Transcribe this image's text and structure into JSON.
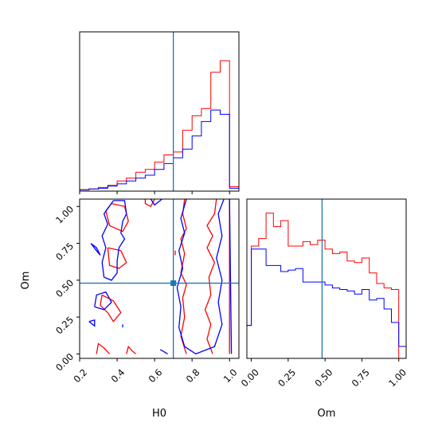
{
  "chart_data": {
    "type": "corner",
    "parameters": [
      "H0",
      "Om"
    ],
    "truth": {
      "H0": 0.7,
      "Om": 0.48,
      "color": "#1f77b4"
    },
    "colors": {
      "run_a": "#ff0000",
      "run_b": "#0000ff"
    },
    "axes": {
      "H0": {
        "range": [
          0.2,
          1.05
        ],
        "ticks": [
          0.2,
          0.4,
          0.6,
          0.8,
          1.0
        ],
        "tick_labels": [
          "0.2",
          "0.4",
          "0.6",
          "0.8",
          "1.0"
        ],
        "xlabel": "H0"
      },
      "Om": {
        "range": [
          -0.03,
          1.05
        ],
        "ticks": [
          0.0,
          0.25,
          0.5,
          0.75,
          1.0
        ],
        "tick_labels": [
          "0.00",
          "0.25",
          "0.50",
          "0.75",
          "1.00"
        ],
        "xlabel": "Om",
        "ylabel": "Om"
      }
    },
    "hist_H0": {
      "bin_edges": [
        0.2,
        0.25,
        0.3,
        0.35,
        0.4,
        0.45,
        0.5,
        0.55,
        0.6,
        0.65,
        0.7,
        0.75,
        0.8,
        0.85,
        0.9,
        0.95,
        1.0,
        1.05
      ],
      "run_a": [
        0.01,
        0.015,
        0.025,
        0.04,
        0.07,
        0.09,
        0.13,
        0.15,
        0.2,
        0.25,
        0.27,
        0.42,
        0.52,
        0.57,
        0.82,
        0.9,
        0.03
      ],
      "run_b": [
        0.01,
        0.015,
        0.02,
        0.035,
        0.05,
        0.07,
        0.09,
        0.11,
        0.15,
        0.19,
        0.23,
        0.29,
        0.38,
        0.48,
        0.56,
        0.53,
        0.02
      ],
      "ymax": 1.0
    },
    "hist_Om": {
      "bin_edges": [
        -0.03,
        0.0,
        0.05,
        0.1,
        0.15,
        0.2,
        0.25,
        0.3,
        0.35,
        0.4,
        0.45,
        0.5,
        0.55,
        0.6,
        0.65,
        0.7,
        0.75,
        0.8,
        0.85,
        0.9,
        0.95,
        1.0,
        1.05
      ],
      "run_a": [
        0.22,
        0.75,
        0.8,
        0.97,
        0.88,
        0.92,
        0.75,
        0.75,
        0.78,
        0.76,
        0.79,
        0.73,
        0.7,
        0.71,
        0.65,
        0.64,
        0.67,
        0.57,
        0.5,
        0.47,
        0.46,
        0.0
      ],
      "run_b": [
        0.22,
        0.73,
        0.73,
        0.62,
        0.62,
        0.58,
        0.59,
        0.6,
        0.51,
        0.51,
        0.51,
        0.49,
        0.47,
        0.46,
        0.45,
        0.43,
        0.46,
        0.39,
        0.4,
        0.33,
        0.24,
        0.08
      ],
      "ymax": 1.0
    },
    "contours_2d": {
      "run_a": [
        [
          [
            0.37,
            1.02
          ],
          [
            0.44,
            1.0
          ],
          [
            0.46,
            0.9
          ],
          [
            0.43,
            0.83
          ],
          [
            0.36,
            0.87
          ],
          [
            0.34,
            0.97
          ],
          [
            0.37,
            1.02
          ]
        ],
        [
          [
            0.35,
            0.72
          ],
          [
            0.42,
            0.7
          ],
          [
            0.45,
            0.62
          ],
          [
            0.41,
            0.58
          ],
          [
            0.36,
            0.6
          ],
          [
            0.35,
            0.72
          ]
        ],
        [
          [
            0.32,
            0.4
          ],
          [
            0.38,
            0.36
          ],
          [
            0.42,
            0.28
          ],
          [
            0.38,
            0.22
          ],
          [
            0.35,
            0.28
          ],
          [
            0.31,
            0.33
          ],
          [
            0.32,
            0.4
          ]
        ],
        [
          [
            0.29,
            0.0
          ],
          [
            0.3,
            0.07
          ],
          [
            0.33,
            0.04
          ],
          [
            0.36,
            0.0
          ]
        ],
        [
          [
            0.45,
            0.0
          ],
          [
            0.46,
            0.05
          ],
          [
            0.48,
            0.02
          ],
          [
            0.5,
            0.0
          ]
        ],
        [
          [
            0.55,
            1.05
          ],
          [
            0.55,
            1.02
          ],
          [
            0.58,
            1.0
          ],
          [
            0.6,
            1.05
          ]
        ],
        [
          [
            0.76,
            1.05
          ],
          [
            0.75,
            0.95
          ],
          [
            0.77,
            0.85
          ],
          [
            0.74,
            0.78
          ],
          [
            0.76,
            0.68
          ],
          [
            0.74,
            0.55
          ],
          [
            0.77,
            0.47
          ],
          [
            0.75,
            0.38
          ],
          [
            0.76,
            0.25
          ],
          [
            0.74,
            0.12
          ],
          [
            0.77,
            0.0
          ]
        ],
        [
          [
            0.93,
            1.05
          ],
          [
            0.92,
            0.95
          ],
          [
            0.88,
            0.87
          ],
          [
            0.91,
            0.8
          ],
          [
            0.88,
            0.72
          ],
          [
            0.92,
            0.62
          ],
          [
            0.89,
            0.52
          ],
          [
            0.9,
            0.4
          ],
          [
            0.87,
            0.3
          ],
          [
            0.9,
            0.2
          ],
          [
            0.88,
            0.1
          ],
          [
            0.91,
            0.0
          ]
        ],
        [
          [
            0.71,
            0.7
          ],
          [
            0.71,
            0.67
          ]
        ],
        [
          [
            1.0,
            1.05
          ],
          [
            1.0,
            0.0
          ]
        ]
      ],
      "run_b": [
        [
          [
            0.38,
            1.04
          ],
          [
            0.44,
            1.04
          ],
          [
            0.45,
            0.95
          ],
          [
            0.43,
            0.9
          ],
          [
            0.42,
            0.82
          ],
          [
            0.44,
            0.78
          ],
          [
            0.41,
            0.72
          ],
          [
            0.4,
            0.63
          ],
          [
            0.4,
            0.55
          ],
          [
            0.37,
            0.5
          ],
          [
            0.33,
            0.52
          ],
          [
            0.32,
            0.62
          ],
          [
            0.34,
            0.72
          ],
          [
            0.32,
            0.8
          ],
          [
            0.35,
            0.88
          ],
          [
            0.33,
            0.95
          ],
          [
            0.38,
            1.04
          ]
        ],
        [
          [
            0.26,
            0.75
          ],
          [
            0.29,
            0.72
          ],
          [
            0.31,
            0.67
          ],
          [
            0.29,
            0.7
          ],
          [
            0.26,
            0.75
          ]
        ],
        [
          [
            0.28,
            0.32
          ],
          [
            0.33,
            0.3
          ],
          [
            0.37,
            0.35
          ],
          [
            0.34,
            0.42
          ],
          [
            0.29,
            0.4
          ],
          [
            0.28,
            0.32
          ]
        ],
        [
          [
            0.25,
            0.22
          ],
          [
            0.28,
            0.19
          ],
          [
            0.28,
            0.23
          ],
          [
            0.25,
            0.22
          ]
        ],
        [
          [
            0.43,
            0.2
          ],
          [
            0.43,
            0.18
          ]
        ],
        [
          [
            0.58,
            1.05
          ],
          [
            0.6,
            1.01
          ],
          [
            0.64,
            1.05
          ]
        ],
        [
          [
            0.77,
            1.05
          ],
          [
            0.74,
            0.92
          ],
          [
            0.76,
            0.82
          ],
          [
            0.73,
            0.7
          ],
          [
            0.75,
            0.58
          ],
          [
            0.72,
            0.45
          ],
          [
            0.74,
            0.32
          ],
          [
            0.73,
            0.18
          ],
          [
            0.76,
            0.05
          ],
          [
            0.82,
            0.0
          ],
          [
            0.92,
            0.05
          ],
          [
            0.96,
            0.2
          ],
          [
            0.94,
            0.35
          ],
          [
            0.96,
            0.5
          ],
          [
            0.93,
            0.65
          ],
          [
            0.96,
            0.8
          ],
          [
            0.94,
            0.95
          ],
          [
            0.97,
            1.05
          ]
        ],
        [
          [
            0.63,
            0.03
          ],
          [
            0.67,
            0.0
          ]
        ],
        [
          [
            1.0,
            1.05
          ],
          [
            1.01,
            0.0
          ]
        ]
      ]
    }
  }
}
